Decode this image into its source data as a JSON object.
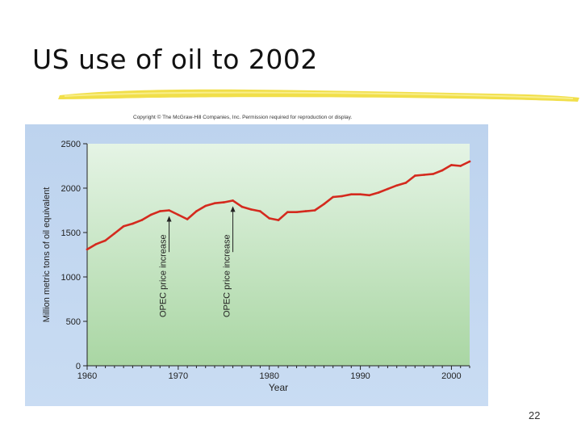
{
  "slide": {
    "title": "US use of oil to 2002",
    "copyright": "Copyright © The McGraw-Hill Companies, Inc. Permission required for reproduction or display.",
    "page_number": "22"
  },
  "colors": {
    "line": "#d42a1e",
    "panel_top": "#bdd3ee",
    "panel_bottom": "#c9dcf3",
    "plot_top": "#e5f4e5",
    "plot_bottom": "#a9d6a3",
    "stroke": "#f1df4a"
  },
  "chart_data": {
    "type": "line",
    "title": "",
    "xlabel": "Year",
    "ylabel": "Million metric tons of oil equivalent",
    "xlim": [
      1960,
      2002
    ],
    "ylim": [
      0,
      2500
    ],
    "x_ticks": [
      1960,
      1970,
      1980,
      1990,
      2000
    ],
    "y_ticks": [
      0,
      500,
      1000,
      1500,
      2000,
      2500
    ],
    "grid": false,
    "legend": "none",
    "series": [
      {
        "x": [
          1960,
          1961,
          1962,
          1963,
          1964,
          1965,
          1966,
          1967,
          1968,
          1969,
          1970,
          1971,
          1972,
          1973,
          1974,
          1975,
          1976,
          1977,
          1978,
          1979,
          1980,
          1981,
          1982,
          1983,
          1984,
          1985,
          1986,
          1987,
          1988,
          1989,
          1990,
          1991,
          1992,
          1993,
          1994,
          1995,
          1996,
          1997,
          1998,
          1999,
          2000,
          2001,
          2002
        ],
        "values": [
          1310,
          1370,
          1410,
          1490,
          1570,
          1600,
          1640,
          1700,
          1740,
          1750,
          1700,
          1650,
          1740,
          1800,
          1830,
          1840,
          1860,
          1790,
          1760,
          1740,
          1660,
          1640,
          1730,
          1730,
          1740,
          1750,
          1820,
          1900,
          1910,
          1930,
          1930,
          1920,
          1950,
          1990,
          2030,
          2060,
          2140,
          2150,
          2160,
          2200,
          2260,
          2250,
          2300
        ]
      }
    ],
    "annotations": [
      {
        "text": "OPEC price increase",
        "x": 1969,
        "y": 1750
      },
      {
        "text": "OPEC price increase",
        "x": 1976,
        "y": 1860
      }
    ]
  }
}
